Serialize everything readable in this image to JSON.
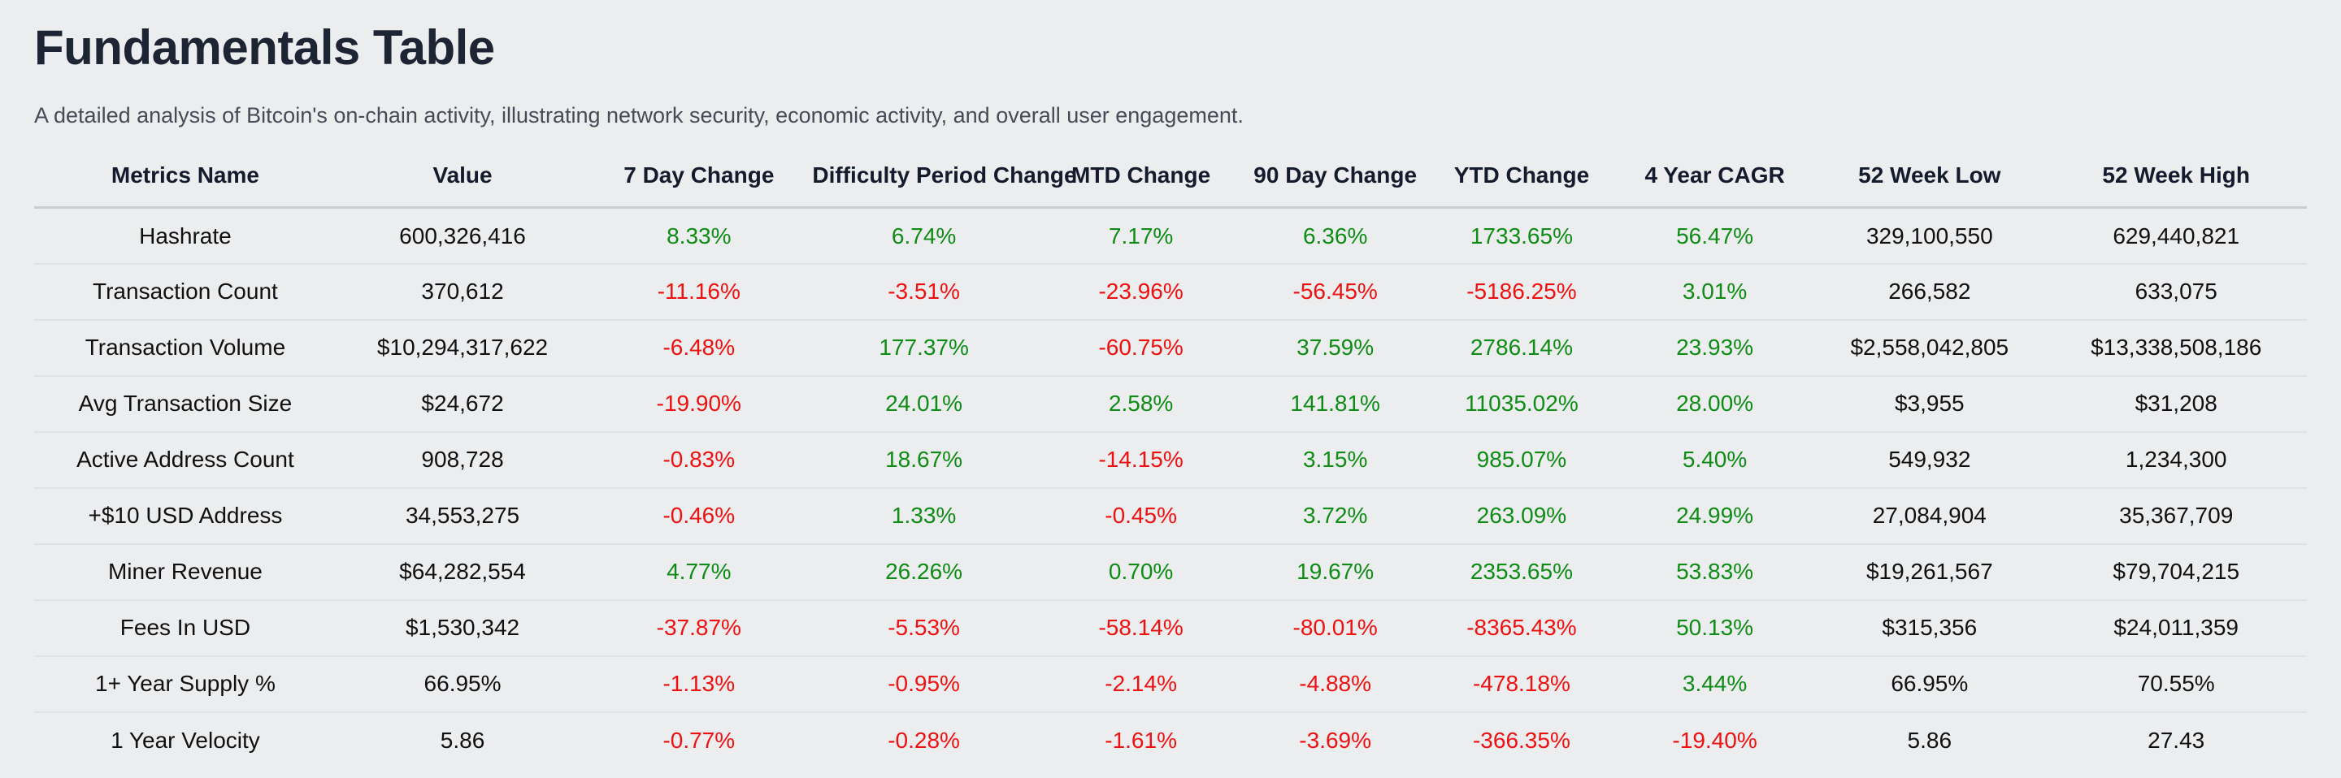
{
  "page": {
    "title": "Fundamentals Table",
    "subtitle": "A detailed analysis of Bitcoin's on-chain activity, illustrating network security, economic activity, and overall user engagement."
  },
  "colors": {
    "positive": "#0e8c15",
    "negative": "#ee1111",
    "page_bg": "#ecedee",
    "title_color": "#1d2433",
    "subtitle_color": "#454b58",
    "header_text": "#141b2d",
    "cell_text": "#101010",
    "header_divider": "#cbcdd0",
    "row_divider": "#dfe1e4"
  },
  "table": {
    "columns": [
      "Metrics Name",
      "Value",
      "7 Day Change",
      "Difficulty Period Change",
      "MTD Change",
      "90 Day Change",
      "YTD Change",
      "4 Year CAGR",
      "52 Week Low",
      "52 Week High"
    ],
    "column_widths_pct": [
      13.3,
      11.1,
      9.7,
      10.1,
      9.0,
      8.1,
      8.3,
      8.7,
      10.2,
      11.5
    ],
    "rows": [
      {
        "cells": [
          {
            "text": "Hashrate",
            "tone": "plain"
          },
          {
            "text": "600,326,416",
            "tone": "plain"
          },
          {
            "text": "8.33%",
            "tone": "pos"
          },
          {
            "text": "6.74%",
            "tone": "pos"
          },
          {
            "text": "7.17%",
            "tone": "pos"
          },
          {
            "text": "6.36%",
            "tone": "pos"
          },
          {
            "text": "1733.65%",
            "tone": "pos"
          },
          {
            "text": "56.47%",
            "tone": "pos"
          },
          {
            "text": "329,100,550",
            "tone": "plain"
          },
          {
            "text": "629,440,821",
            "tone": "plain"
          }
        ]
      },
      {
        "cells": [
          {
            "text": "Transaction Count",
            "tone": "plain"
          },
          {
            "text": "370,612",
            "tone": "plain"
          },
          {
            "text": "-11.16%",
            "tone": "neg"
          },
          {
            "text": "-3.51%",
            "tone": "neg"
          },
          {
            "text": "-23.96%",
            "tone": "neg"
          },
          {
            "text": "-56.45%",
            "tone": "neg"
          },
          {
            "text": "-5186.25%",
            "tone": "neg"
          },
          {
            "text": "3.01%",
            "tone": "pos"
          },
          {
            "text": "266,582",
            "tone": "plain"
          },
          {
            "text": "633,075",
            "tone": "plain"
          }
        ]
      },
      {
        "cells": [
          {
            "text": "Transaction Volume",
            "tone": "plain"
          },
          {
            "text": "$10,294,317,622",
            "tone": "plain"
          },
          {
            "text": "-6.48%",
            "tone": "neg"
          },
          {
            "text": "177.37%",
            "tone": "pos"
          },
          {
            "text": "-60.75%",
            "tone": "neg"
          },
          {
            "text": "37.59%",
            "tone": "pos"
          },
          {
            "text": "2786.14%",
            "tone": "pos"
          },
          {
            "text": "23.93%",
            "tone": "pos"
          },
          {
            "text": "$2,558,042,805",
            "tone": "plain"
          },
          {
            "text": "$13,338,508,186",
            "tone": "plain"
          }
        ]
      },
      {
        "cells": [
          {
            "text": "Avg Transaction Size",
            "tone": "plain"
          },
          {
            "text": "$24,672",
            "tone": "plain"
          },
          {
            "text": "-19.90%",
            "tone": "neg"
          },
          {
            "text": "24.01%",
            "tone": "pos"
          },
          {
            "text": "2.58%",
            "tone": "pos"
          },
          {
            "text": "141.81%",
            "tone": "pos"
          },
          {
            "text": "11035.02%",
            "tone": "pos"
          },
          {
            "text": "28.00%",
            "tone": "pos"
          },
          {
            "text": "$3,955",
            "tone": "plain"
          },
          {
            "text": "$31,208",
            "tone": "plain"
          }
        ]
      },
      {
        "cells": [
          {
            "text": "Active Address Count",
            "tone": "plain"
          },
          {
            "text": "908,728",
            "tone": "plain"
          },
          {
            "text": "-0.83%",
            "tone": "neg"
          },
          {
            "text": "18.67%",
            "tone": "pos"
          },
          {
            "text": "-14.15%",
            "tone": "neg"
          },
          {
            "text": "3.15%",
            "tone": "pos"
          },
          {
            "text": "985.07%",
            "tone": "pos"
          },
          {
            "text": "5.40%",
            "tone": "pos"
          },
          {
            "text": "549,932",
            "tone": "plain"
          },
          {
            "text": "1,234,300",
            "tone": "plain"
          }
        ]
      },
      {
        "cells": [
          {
            "text": "+$10 USD Address",
            "tone": "plain"
          },
          {
            "text": "34,553,275",
            "tone": "plain"
          },
          {
            "text": "-0.46%",
            "tone": "neg"
          },
          {
            "text": "1.33%",
            "tone": "pos"
          },
          {
            "text": "-0.45%",
            "tone": "neg"
          },
          {
            "text": "3.72%",
            "tone": "pos"
          },
          {
            "text": "263.09%",
            "tone": "pos"
          },
          {
            "text": "24.99%",
            "tone": "pos"
          },
          {
            "text": "27,084,904",
            "tone": "plain"
          },
          {
            "text": "35,367,709",
            "tone": "plain"
          }
        ]
      },
      {
        "cells": [
          {
            "text": "Miner Revenue",
            "tone": "plain"
          },
          {
            "text": "$64,282,554",
            "tone": "plain"
          },
          {
            "text": "4.77%",
            "tone": "pos"
          },
          {
            "text": "26.26%",
            "tone": "pos"
          },
          {
            "text": "0.70%",
            "tone": "pos"
          },
          {
            "text": "19.67%",
            "tone": "pos"
          },
          {
            "text": "2353.65%",
            "tone": "pos"
          },
          {
            "text": "53.83%",
            "tone": "pos"
          },
          {
            "text": "$19,261,567",
            "tone": "plain"
          },
          {
            "text": "$79,704,215",
            "tone": "plain"
          }
        ]
      },
      {
        "cells": [
          {
            "text": "Fees In USD",
            "tone": "plain"
          },
          {
            "text": "$1,530,342",
            "tone": "plain"
          },
          {
            "text": "-37.87%",
            "tone": "neg"
          },
          {
            "text": "-5.53%",
            "tone": "neg"
          },
          {
            "text": "-58.14%",
            "tone": "neg"
          },
          {
            "text": "-80.01%",
            "tone": "neg"
          },
          {
            "text": "-8365.43%",
            "tone": "neg"
          },
          {
            "text": "50.13%",
            "tone": "pos"
          },
          {
            "text": "$315,356",
            "tone": "plain"
          },
          {
            "text": "$24,011,359",
            "tone": "plain"
          }
        ]
      },
      {
        "cells": [
          {
            "text": "1+ Year Supply %",
            "tone": "plain"
          },
          {
            "text": "66.95%",
            "tone": "plain"
          },
          {
            "text": "-1.13%",
            "tone": "neg"
          },
          {
            "text": "-0.95%",
            "tone": "neg"
          },
          {
            "text": "-2.14%",
            "tone": "neg"
          },
          {
            "text": "-4.88%",
            "tone": "neg"
          },
          {
            "text": "-478.18%",
            "tone": "neg"
          },
          {
            "text": "3.44%",
            "tone": "pos"
          },
          {
            "text": "66.95%",
            "tone": "plain"
          },
          {
            "text": "70.55%",
            "tone": "plain"
          }
        ]
      },
      {
        "cells": [
          {
            "text": "1 Year Velocity",
            "tone": "plain"
          },
          {
            "text": "5.86",
            "tone": "plain"
          },
          {
            "text": "-0.77%",
            "tone": "neg"
          },
          {
            "text": "-0.28%",
            "tone": "neg"
          },
          {
            "text": "-1.61%",
            "tone": "neg"
          },
          {
            "text": "-3.69%",
            "tone": "neg"
          },
          {
            "text": "-366.35%",
            "tone": "neg"
          },
          {
            "text": "-19.40%",
            "tone": "neg"
          },
          {
            "text": "5.86",
            "tone": "plain"
          },
          {
            "text": "27.43",
            "tone": "plain"
          }
        ]
      }
    ]
  }
}
